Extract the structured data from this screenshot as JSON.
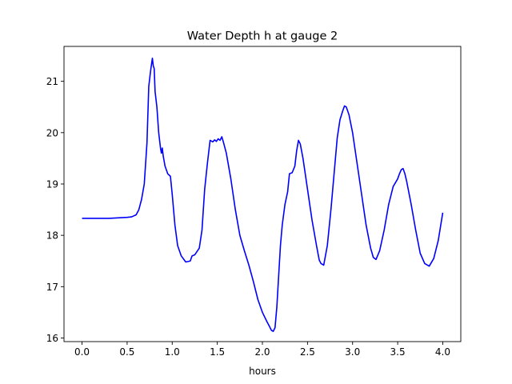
{
  "chart_data": {
    "type": "line",
    "title": "Water Depth h at gauge 2",
    "xlabel": "hours",
    "ylabel": "",
    "xlim": [
      -0.2,
      4.2
    ],
    "ylim": [
      15.93,
      21.68
    ],
    "xticks": [
      0.0,
      0.5,
      1.0,
      1.5,
      2.0,
      2.5,
      3.0,
      3.5,
      4.0
    ],
    "xtick_labels": [
      "0.0",
      "0.5",
      "1.0",
      "1.5",
      "2.0",
      "2.5",
      "3.0",
      "3.5",
      "4.0"
    ],
    "yticks": [
      16,
      17,
      18,
      19,
      20,
      21
    ],
    "ytick_labels": [
      "16",
      "17",
      "18",
      "19",
      "20",
      "21"
    ],
    "grid": false,
    "color": "#0000ff",
    "series": [
      {
        "x": [
          0.0,
          0.1,
          0.2,
          0.3,
          0.4,
          0.5,
          0.55,
          0.6,
          0.63,
          0.66,
          0.69,
          0.72,
          0.74,
          0.76,
          0.78,
          0.79,
          0.8,
          0.81,
          0.83,
          0.85,
          0.87,
          0.88,
          0.89,
          0.9,
          0.92,
          0.95,
          0.98,
          1.0,
          1.03,
          1.06,
          1.1,
          1.15,
          1.2,
          1.22,
          1.25,
          1.3,
          1.33,
          1.36,
          1.39,
          1.42,
          1.45,
          1.47,
          1.49,
          1.51,
          1.53,
          1.55,
          1.57,
          1.6,
          1.65,
          1.7,
          1.75,
          1.8,
          1.85,
          1.9,
          1.95,
          2.0,
          2.05,
          2.08,
          2.1,
          2.12,
          2.14,
          2.16,
          2.18,
          2.2,
          2.22,
          2.25,
          2.28,
          2.3,
          2.33,
          2.36,
          2.38,
          2.4,
          2.42,
          2.45,
          2.5,
          2.55,
          2.6,
          2.63,
          2.65,
          2.68,
          2.72,
          2.76,
          2.8,
          2.83,
          2.86,
          2.89,
          2.91,
          2.93,
          2.96,
          3.0,
          3.05,
          3.1,
          3.15,
          3.2,
          3.23,
          3.26,
          3.3,
          3.35,
          3.4,
          3.45,
          3.5,
          3.52,
          3.54,
          3.56,
          3.58,
          3.6,
          3.65,
          3.7,
          3.75,
          3.8,
          3.85,
          3.9,
          3.95,
          4.0
        ],
        "y": [
          18.33,
          18.33,
          18.33,
          18.33,
          18.34,
          18.35,
          18.36,
          18.4,
          18.5,
          18.7,
          19.0,
          19.8,
          20.9,
          21.2,
          21.45,
          21.3,
          21.25,
          20.8,
          20.5,
          20.0,
          19.7,
          19.6,
          19.7,
          19.55,
          19.35,
          19.2,
          19.15,
          18.8,
          18.2,
          17.8,
          17.6,
          17.48,
          17.5,
          17.6,
          17.62,
          17.75,
          18.1,
          18.9,
          19.4,
          19.85,
          19.82,
          19.86,
          19.83,
          19.88,
          19.85,
          19.92,
          19.8,
          19.6,
          19.1,
          18.5,
          18.0,
          17.7,
          17.42,
          17.1,
          16.75,
          16.5,
          16.32,
          16.22,
          16.15,
          16.13,
          16.2,
          16.6,
          17.2,
          17.8,
          18.2,
          18.6,
          18.85,
          19.2,
          19.22,
          19.35,
          19.65,
          19.85,
          19.78,
          19.5,
          18.9,
          18.3,
          17.8,
          17.52,
          17.45,
          17.42,
          17.8,
          18.5,
          19.3,
          19.9,
          20.25,
          20.42,
          20.52,
          20.5,
          20.35,
          20.0,
          19.4,
          18.8,
          18.2,
          17.75,
          17.57,
          17.53,
          17.7,
          18.1,
          18.6,
          18.95,
          19.1,
          19.2,
          19.28,
          19.3,
          19.2,
          19.05,
          18.6,
          18.1,
          17.65,
          17.45,
          17.4,
          17.55,
          17.9,
          18.44
        ]
      }
    ]
  }
}
